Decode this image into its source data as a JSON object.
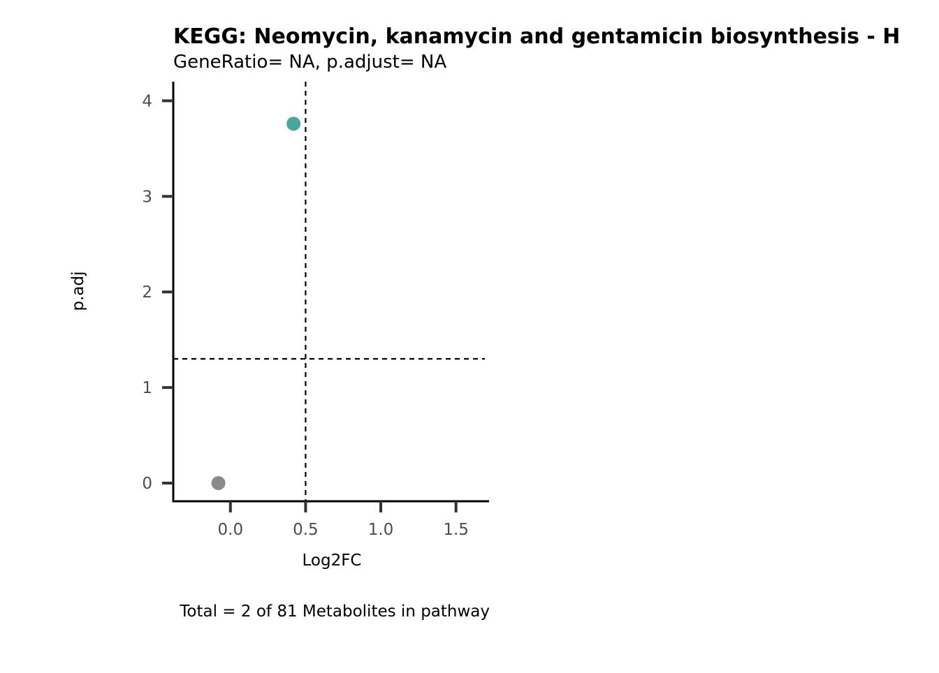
{
  "chart_data": {
    "type": "scatter",
    "title": "KEGG: Neomycin, kanamycin and gentamicin biosynthesis - H",
    "subtitle": "GeneRatio= NA, p.adjust= NA",
    "xlabel": "Log2FC",
    "ylabel": "p.adj",
    "caption": "Total = 2 of 81 Metabolites in pathway",
    "xlim": [
      -0.38,
      1.72
    ],
    "ylim": [
      -0.19,
      4.2
    ],
    "x_ticks": [
      0.0,
      0.5,
      1.0,
      1.5
    ],
    "x_tick_labels": [
      "0.0",
      "0.5",
      "1.0",
      "1.5"
    ],
    "y_ticks": [
      0,
      1,
      2,
      3,
      4
    ],
    "y_tick_labels": [
      "0",
      "1",
      "2",
      "3",
      "4"
    ],
    "reference_lines": {
      "vertical_x": 0.5,
      "horizontal_y": 1.3
    },
    "grid": false,
    "legend": "none",
    "points": [
      {
        "x": 0.42,
        "y": 3.76,
        "color": "#45a89a"
      },
      {
        "x": -0.08,
        "y": 0.0,
        "color": "#8a8a8a"
      }
    ]
  }
}
